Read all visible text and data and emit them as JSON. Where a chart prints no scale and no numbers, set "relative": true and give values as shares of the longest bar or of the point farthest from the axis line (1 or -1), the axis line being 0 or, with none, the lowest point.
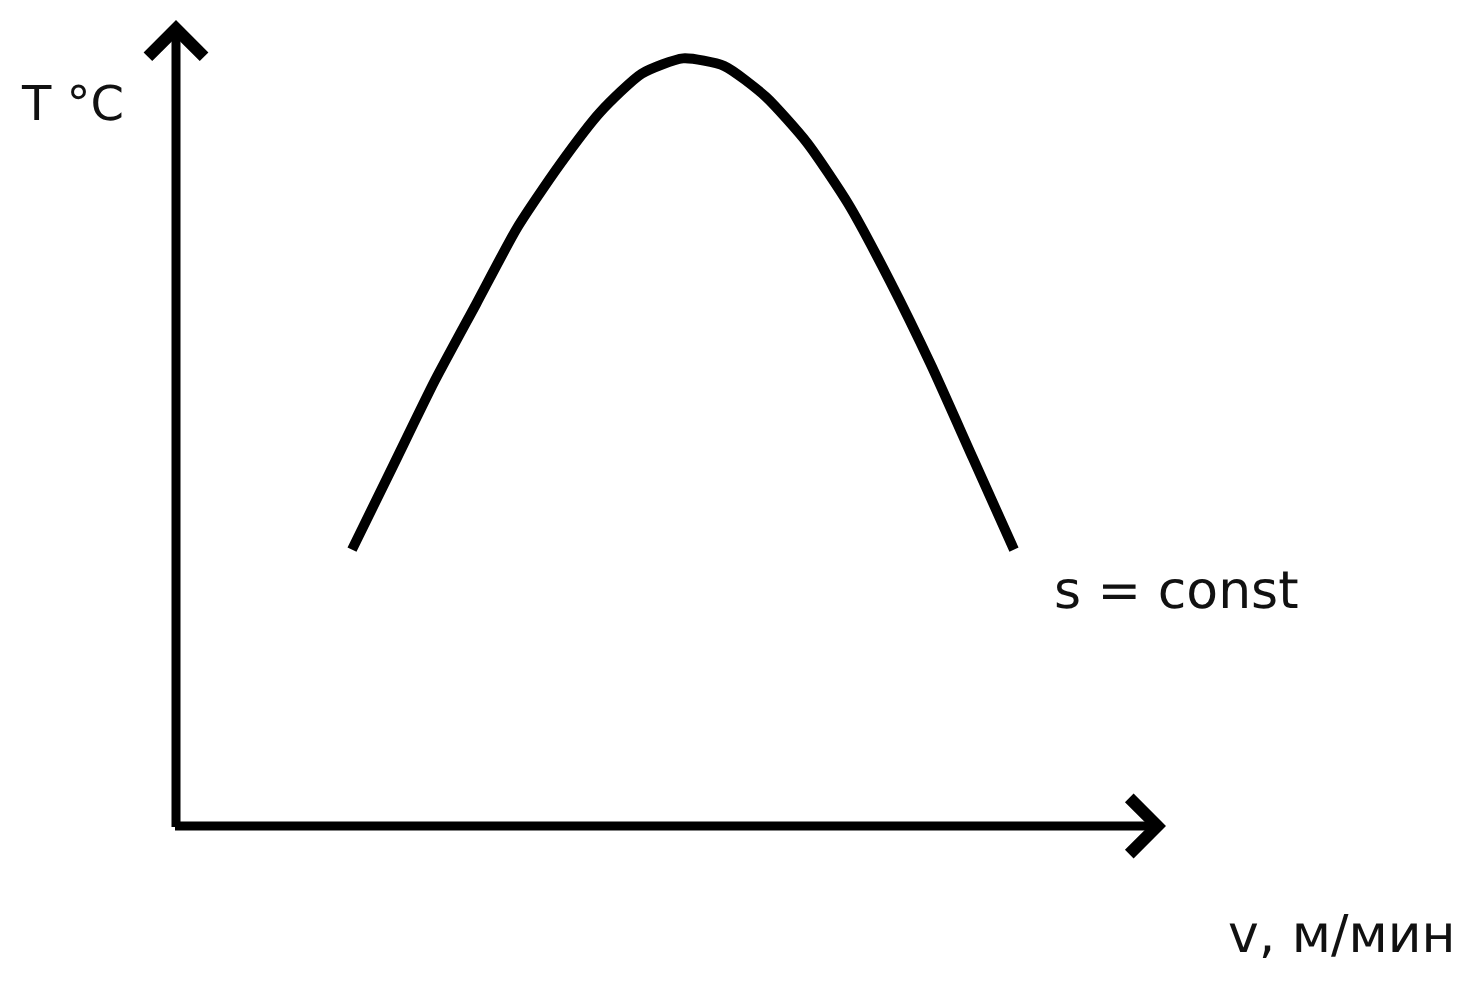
{
  "chart_data": {
    "type": "line",
    "relative": true,
    "xlabel": "v, м/мин",
    "ylabel": "T °C",
    "line_style": "solid",
    "categories": [
      null,
      null,
      null,
      null,
      null,
      null,
      null,
      null,
      null,
      null,
      null,
      null,
      null,
      null,
      null,
      null,
      null
    ],
    "series": [
      {
        "name": "s = const",
        "color": "#000000",
        "values": [
          0.36,
          0.47,
          0.58,
          0.68,
          0.78,
          0.86,
          0.93,
          0.98,
          1.0,
          0.99,
          0.95,
          0.89,
          0.81,
          0.71,
          0.6,
          0.48,
          0.36
        ]
      }
    ]
  }
}
